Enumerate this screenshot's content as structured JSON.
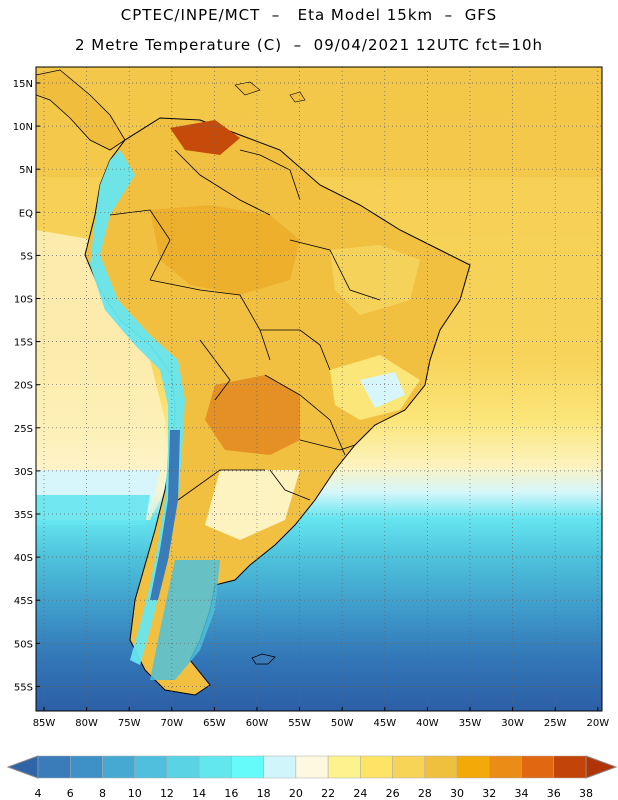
{
  "title": {
    "line1": "CPTEC/INPE/MCT  –   Eta Model 15km  –  GFS",
    "line2": "2 Metre Temperature (C)  –  09/04/2021 12UTC fct=10h"
  },
  "map": {
    "lat_labels": [
      "15N",
      "10N",
      "5N",
      "EQ",
      "5S",
      "10S",
      "15S",
      "20S",
      "25S",
      "30S",
      "35S",
      "40S",
      "45S",
      "50S",
      "55S"
    ],
    "lon_labels": [
      "85W",
      "80W",
      "75W",
      "70W",
      "65W",
      "60W",
      "55W",
      "50W",
      "45W",
      "40W",
      "35W",
      "30W",
      "25W",
      "20W"
    ]
  },
  "colorbar": {
    "labels": [
      "4",
      "6",
      "8",
      "10",
      "12",
      "14",
      "16",
      "18",
      "20",
      "22",
      "24",
      "26",
      "28",
      "30",
      "32",
      "34",
      "36",
      "38"
    ],
    "colors": [
      "#2f64a8",
      "#3a7bba",
      "#3e91c6",
      "#46a9d2",
      "#4ebfdc",
      "#5ad3e4",
      "#63e7ee",
      "#66fbfb",
      "#d0f6fb",
      "#fdf8df",
      "#fdf38e",
      "#fde464",
      "#f7d457",
      "#efc03e",
      "#f2aa08",
      "#eb8c17",
      "#e06810",
      "#c24408",
      "#b03405"
    ]
  }
}
